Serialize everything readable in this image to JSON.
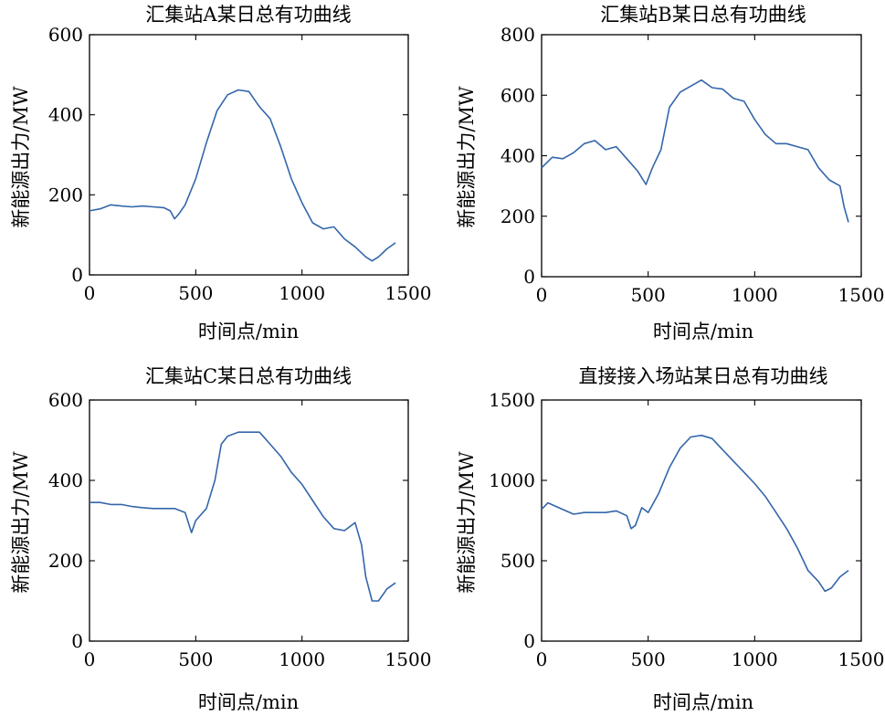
{
  "figure": {
    "line_color": "#3366aa"
  },
  "chart_data": [
    {
      "type": "line",
      "title": "汇集站A某日总有功曲线",
      "xlabel": "时间点/min",
      "ylabel": "新能源出力/MW",
      "xlim": [
        0,
        1500
      ],
      "ylim": [
        0,
        600
      ],
      "xticks": [
        0,
        500,
        1000,
        1500
      ],
      "yticks": [
        0,
        200,
        400,
        600
      ],
      "grid": false,
      "x": [
        0,
        50,
        100,
        150,
        200,
        250,
        300,
        350,
        380,
        400,
        420,
        450,
        500,
        550,
        600,
        650,
        700,
        750,
        800,
        850,
        900,
        950,
        1000,
        1050,
        1100,
        1150,
        1200,
        1250,
        1300,
        1330,
        1360,
        1400,
        1440
      ],
      "y": [
        160,
        165,
        175,
        172,
        170,
        172,
        170,
        168,
        160,
        140,
        152,
        175,
        240,
        330,
        410,
        450,
        462,
        458,
        420,
        390,
        320,
        240,
        180,
        130,
        115,
        120,
        90,
        70,
        45,
        35,
        45,
        65,
        80
      ],
      "series": [
        {
          "name": "",
          "color": "#3366aa"
        }
      ]
    },
    {
      "type": "line",
      "title": "汇集站B某日总有功曲线",
      "xlabel": "时间点/min",
      "ylabel": "新能源出力/MW",
      "xlim": [
        0,
        1500
      ],
      "ylim": [
        0,
        800
      ],
      "xticks": [
        0,
        500,
        1000,
        1500
      ],
      "yticks": [
        0,
        200,
        400,
        600,
        800
      ],
      "grid": false,
      "x": [
        0,
        50,
        100,
        150,
        200,
        250,
        300,
        350,
        400,
        450,
        490,
        520,
        560,
        600,
        650,
        700,
        750,
        800,
        850,
        900,
        950,
        1000,
        1050,
        1100,
        1150,
        1200,
        1250,
        1300,
        1350,
        1400,
        1420,
        1440
      ],
      "y": [
        360,
        395,
        390,
        410,
        440,
        450,
        420,
        430,
        390,
        350,
        305,
        360,
        420,
        560,
        610,
        630,
        650,
        625,
        620,
        590,
        580,
        520,
        470,
        440,
        440,
        430,
        420,
        360,
        320,
        300,
        230,
        180
      ],
      "series": [
        {
          "name": "",
          "color": "#3366aa"
        }
      ]
    },
    {
      "type": "line",
      "title": "汇集站C某日总有功曲线",
      "xlabel": "时间点/min",
      "ylabel": "新能源出力/MW",
      "xlim": [
        0,
        1500
      ],
      "ylim": [
        0,
        600
      ],
      "xticks": [
        0,
        500,
        1000,
        1500
      ],
      "yticks": [
        0,
        200,
        400,
        600
      ],
      "grid": false,
      "x": [
        0,
        50,
        100,
        150,
        200,
        250,
        300,
        350,
        400,
        450,
        480,
        500,
        550,
        590,
        620,
        650,
        700,
        750,
        800,
        850,
        900,
        950,
        1000,
        1050,
        1100,
        1150,
        1200,
        1250,
        1280,
        1300,
        1330,
        1360,
        1400,
        1440
      ],
      "y": [
        345,
        345,
        340,
        340,
        335,
        332,
        330,
        330,
        330,
        320,
        270,
        300,
        330,
        400,
        490,
        510,
        520,
        520,
        520,
        490,
        460,
        420,
        390,
        350,
        310,
        280,
        275,
        295,
        240,
        160,
        100,
        100,
        130,
        145
      ],
      "series": [
        {
          "name": "",
          "color": "#3366aa"
        }
      ]
    },
    {
      "type": "line",
      "title": "直接接入场站某日总有功曲线",
      "xlabel": "时间点/min",
      "ylabel": "新能源出力/MW",
      "xlim": [
        0,
        1500
      ],
      "ylim": [
        0,
        1500
      ],
      "xticks": [
        0,
        500,
        1000,
        1500
      ],
      "yticks": [
        0,
        500,
        1000,
        1500
      ],
      "grid": false,
      "x": [
        0,
        30,
        80,
        150,
        200,
        250,
        300,
        350,
        400,
        420,
        440,
        470,
        500,
        550,
        600,
        650,
        700,
        750,
        800,
        850,
        900,
        950,
        1000,
        1050,
        1100,
        1150,
        1200,
        1250,
        1300,
        1330,
        1360,
        1400,
        1440
      ],
      "y": [
        820,
        860,
        830,
        790,
        800,
        800,
        800,
        810,
        780,
        700,
        720,
        830,
        800,
        920,
        1080,
        1200,
        1270,
        1280,
        1260,
        1190,
        1120,
        1050,
        980,
        900,
        800,
        700,
        580,
        440,
        370,
        310,
        330,
        400,
        440
      ],
      "series": [
        {
          "name": "",
          "color": "#3366aa"
        }
      ]
    }
  ]
}
